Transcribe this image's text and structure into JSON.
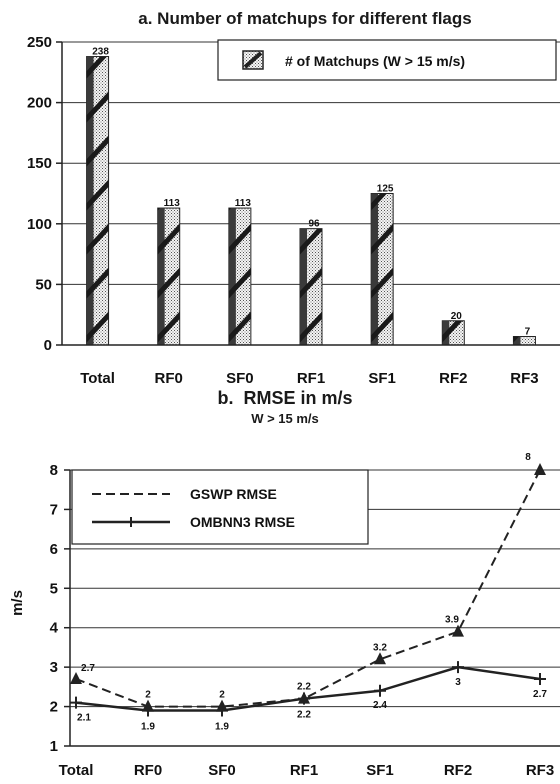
{
  "chart_data": [
    {
      "type": "bar",
      "title": "a. Number of matchups for different flags",
      "categories": [
        "Total",
        "RF0",
        "SF0",
        "RF1",
        "SF1",
        "RF2",
        "RF3"
      ],
      "series": [
        {
          "name": "# of Matchups (W > 15 m/s)",
          "values": [
            238,
            113,
            113,
            96,
            125,
            20,
            7
          ]
        }
      ],
      "data_labels": [
        "238",
        "113",
        "113",
        "96",
        "125",
        "20",
        "7"
      ],
      "ylim": [
        0,
        250
      ],
      "yticks": [
        "0",
        "50",
        "100",
        "150",
        "200",
        "250"
      ],
      "grid": true,
      "legend_position": "top-right"
    },
    {
      "type": "line",
      "title": "b.  RMSE in m/s",
      "subtitle": "W > 15 m/s",
      "ylabel": "m/s",
      "categories": [
        "Total",
        "RF0",
        "SF0",
        "RF1",
        "SF1",
        "RF2",
        "RF3"
      ],
      "series": [
        {
          "name": "GSWP RMSE",
          "values": [
            2.7,
            2,
            2,
            2.2,
            3.2,
            3.9,
            8
          ],
          "labels": [
            "2.7",
            "2",
            "2",
            "2.2",
            "3.2",
            "3.9",
            "8"
          ],
          "style": "dashed",
          "marker": "triangle"
        },
        {
          "name": "OMBNN3 RMSE",
          "values": [
            2.1,
            1.9,
            1.9,
            2.2,
            2.4,
            3,
            2.7
          ],
          "labels": [
            "2.1",
            "1.9",
            "1.9",
            "2.2",
            "2.4",
            "3",
            "2.7"
          ],
          "style": "solid",
          "marker": "cross"
        }
      ],
      "ylim": [
        1,
        8
      ],
      "yticks": [
        "1",
        "2",
        "3",
        "4",
        "5",
        "6",
        "7",
        "8"
      ],
      "grid": true,
      "legend_position": "top-left"
    }
  ]
}
